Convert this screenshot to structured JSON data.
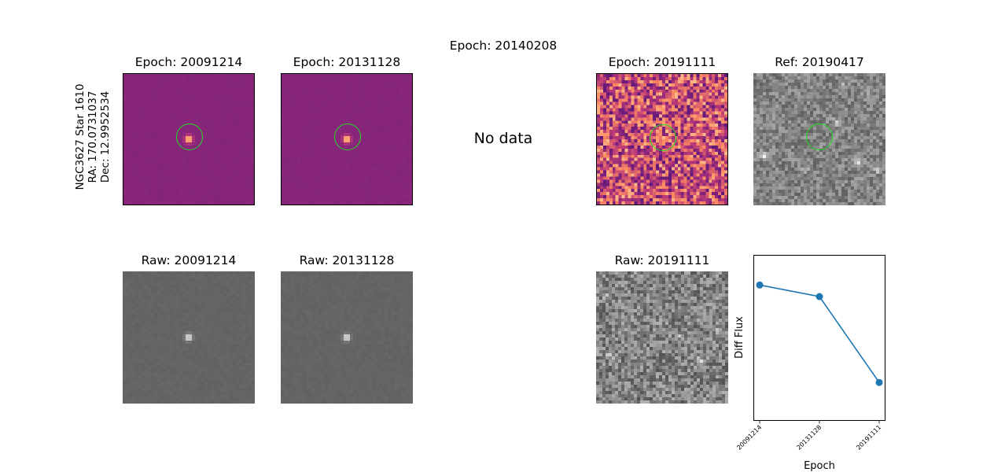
{
  "header": {
    "title": "Epoch: 20140208"
  },
  "star_label": {
    "line1": "NGC3627 Star 1610",
    "line2": "RA: 170.0731037",
    "line3": "Dec: 12.9952534"
  },
  "diff_panels": [
    {
      "title": "Epoch: 20091214",
      "kind": "diff"
    },
    {
      "title": "Epoch: 20131128",
      "kind": "diff"
    },
    {
      "title": "Epoch: 20191111",
      "kind": "noise"
    },
    {
      "title": "Ref: 20190417",
      "kind": "ref"
    }
  ],
  "missing_epoch": {
    "message": "No data"
  },
  "raw_panels": [
    {
      "title": "Raw: 20091214"
    },
    {
      "title": "Raw: 20131128"
    },
    {
      "title": "Raw: 20191111"
    }
  ],
  "colors": {
    "marker_circle": "#22dd22",
    "series": "#1f77b4"
  },
  "chart_data": {
    "type": "line",
    "x": [
      "20091214",
      "20131128",
      "20191111"
    ],
    "series": [
      {
        "values": [
          0.82,
          0.75,
          0.23
        ]
      }
    ],
    "xlabel": "Epoch",
    "ylabel": "Diff Flux",
    "yticks": "none",
    "ylim": [
      0,
      1
    ],
    "grid": false,
    "marker": "circle"
  }
}
